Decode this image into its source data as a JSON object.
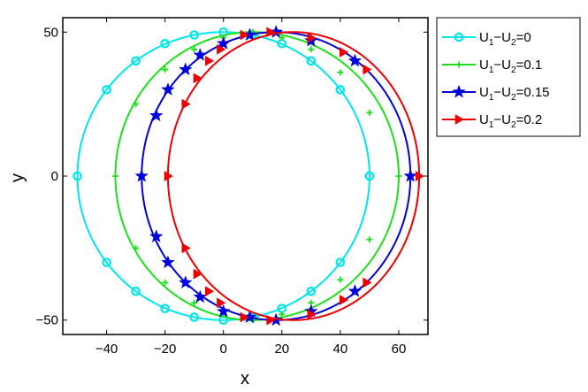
{
  "chart_data": {
    "type": "line",
    "title": "",
    "xlabel": "x",
    "ylabel": "y",
    "xlim": [
      -55,
      70
    ],
    "ylim": [
      -55,
      55
    ],
    "xticks": [
      -40,
      -20,
      0,
      20,
      40,
      60
    ],
    "yticks": [
      -50,
      0,
      50
    ],
    "xtick_labels": [
      "−40",
      "−20",
      "0",
      "20",
      "40",
      "60"
    ],
    "ytick_labels": [
      "−50",
      "0",
      "50"
    ],
    "grid": false,
    "legend_position": "outside-top-right",
    "series": [
      {
        "name": "U1−U2=0",
        "label_parts": [
          "U",
          "1",
          "−U",
          "2",
          "=0"
        ],
        "color": "#00e5ee",
        "marker": "circle",
        "shape": {
          "center_x": 0,
          "center_y": 0,
          "x_left": -50,
          "x_right": 50,
          "x_top": 0,
          "y_half_height": 50
        },
        "marker_points": [
          [
            0,
            50
          ],
          [
            10,
            49
          ],
          [
            20,
            46
          ],
          [
            30,
            40
          ],
          [
            40,
            30
          ],
          [
            50,
            0
          ],
          [
            40,
            -30
          ],
          [
            30,
            -40
          ],
          [
            20,
            -46
          ],
          [
            10,
            -49
          ],
          [
            0,
            -50
          ],
          [
            -10,
            -49
          ],
          [
            -20,
            -46
          ],
          [
            -30,
            -40
          ],
          [
            -40,
            -30
          ],
          [
            -50,
            0
          ],
          [
            -40,
            30
          ],
          [
            -30,
            40
          ],
          [
            -20,
            46
          ],
          [
            -10,
            49
          ]
        ]
      },
      {
        "name": "U1−U2=0.1",
        "label_parts": [
          "U",
          "1",
          "−U",
          "2",
          "=0.1"
        ],
        "color": "#1de01d",
        "marker": "plus",
        "shape": {
          "x_left": -37,
          "x_right": 60,
          "x_top": 10,
          "y_half_height": 50
        },
        "marker_points": [
          [
            10,
            50
          ],
          [
            20,
            48
          ],
          [
            30,
            44
          ],
          [
            40,
            36
          ],
          [
            50,
            22
          ],
          [
            60,
            0
          ],
          [
            50,
            -22
          ],
          [
            40,
            -36
          ],
          [
            30,
            -44
          ],
          [
            20,
            -48
          ],
          [
            10,
            -50
          ],
          [
            0,
            -48
          ],
          [
            -10,
            -44
          ],
          [
            -20,
            -37
          ],
          [
            -30,
            -25
          ],
          [
            -37,
            0
          ],
          [
            -30,
            25
          ],
          [
            -20,
            37
          ],
          [
            -10,
            44
          ],
          [
            0,
            48
          ]
        ]
      },
      {
        "name": "U1−U2=0.15",
        "label_parts": [
          "U",
          "1",
          "−U",
          "2",
          "=0.15"
        ],
        "color": "#0000dd",
        "marker": "star",
        "shape": {
          "x_left": -28,
          "x_right": 64,
          "x_top": 18,
          "y_half_height": 50
        },
        "marker_points": [
          [
            9,
            49
          ],
          [
            18,
            50
          ],
          [
            30,
            47
          ],
          [
            45,
            40
          ],
          [
            64,
            0
          ],
          [
            45,
            -40
          ],
          [
            30,
            -47
          ],
          [
            18,
            -50
          ],
          [
            9,
            -49
          ],
          [
            0,
            -47
          ],
          [
            -8,
            -42
          ],
          [
            -13,
            -37
          ],
          [
            -19,
            -30
          ],
          [
            -23,
            -21
          ],
          [
            -28,
            0
          ],
          [
            -23,
            21
          ],
          [
            -19,
            30
          ],
          [
            -13,
            37
          ],
          [
            -8,
            42
          ],
          [
            0,
            46
          ]
        ]
      },
      {
        "name": "U1−U2=0.2",
        "label_parts": [
          "U",
          "1",
          "−U",
          "2",
          "=0.2"
        ],
        "color": "#ee0000",
        "marker": "triangle-right",
        "shape": {
          "x_left": -19,
          "x_right": 67,
          "x_top": 24,
          "y_half_height": 50
        },
        "marker_points": [
          [
            7,
            49
          ],
          [
            16,
            50
          ],
          [
            30,
            48
          ],
          [
            41,
            43
          ],
          [
            49,
            37
          ],
          [
            67,
            0
          ],
          [
            49,
            -37
          ],
          [
            41,
            -43
          ],
          [
            30,
            -48
          ],
          [
            16,
            -50
          ],
          [
            7,
            -49
          ],
          [
            -1,
            -44
          ],
          [
            -5,
            -40
          ],
          [
            -9,
            -34
          ],
          [
            -13,
            -25
          ],
          [
            -19,
            0
          ],
          [
            -13,
            25
          ],
          [
            -9,
            34
          ],
          [
            -5,
            40
          ],
          [
            -1,
            44
          ]
        ]
      }
    ]
  }
}
